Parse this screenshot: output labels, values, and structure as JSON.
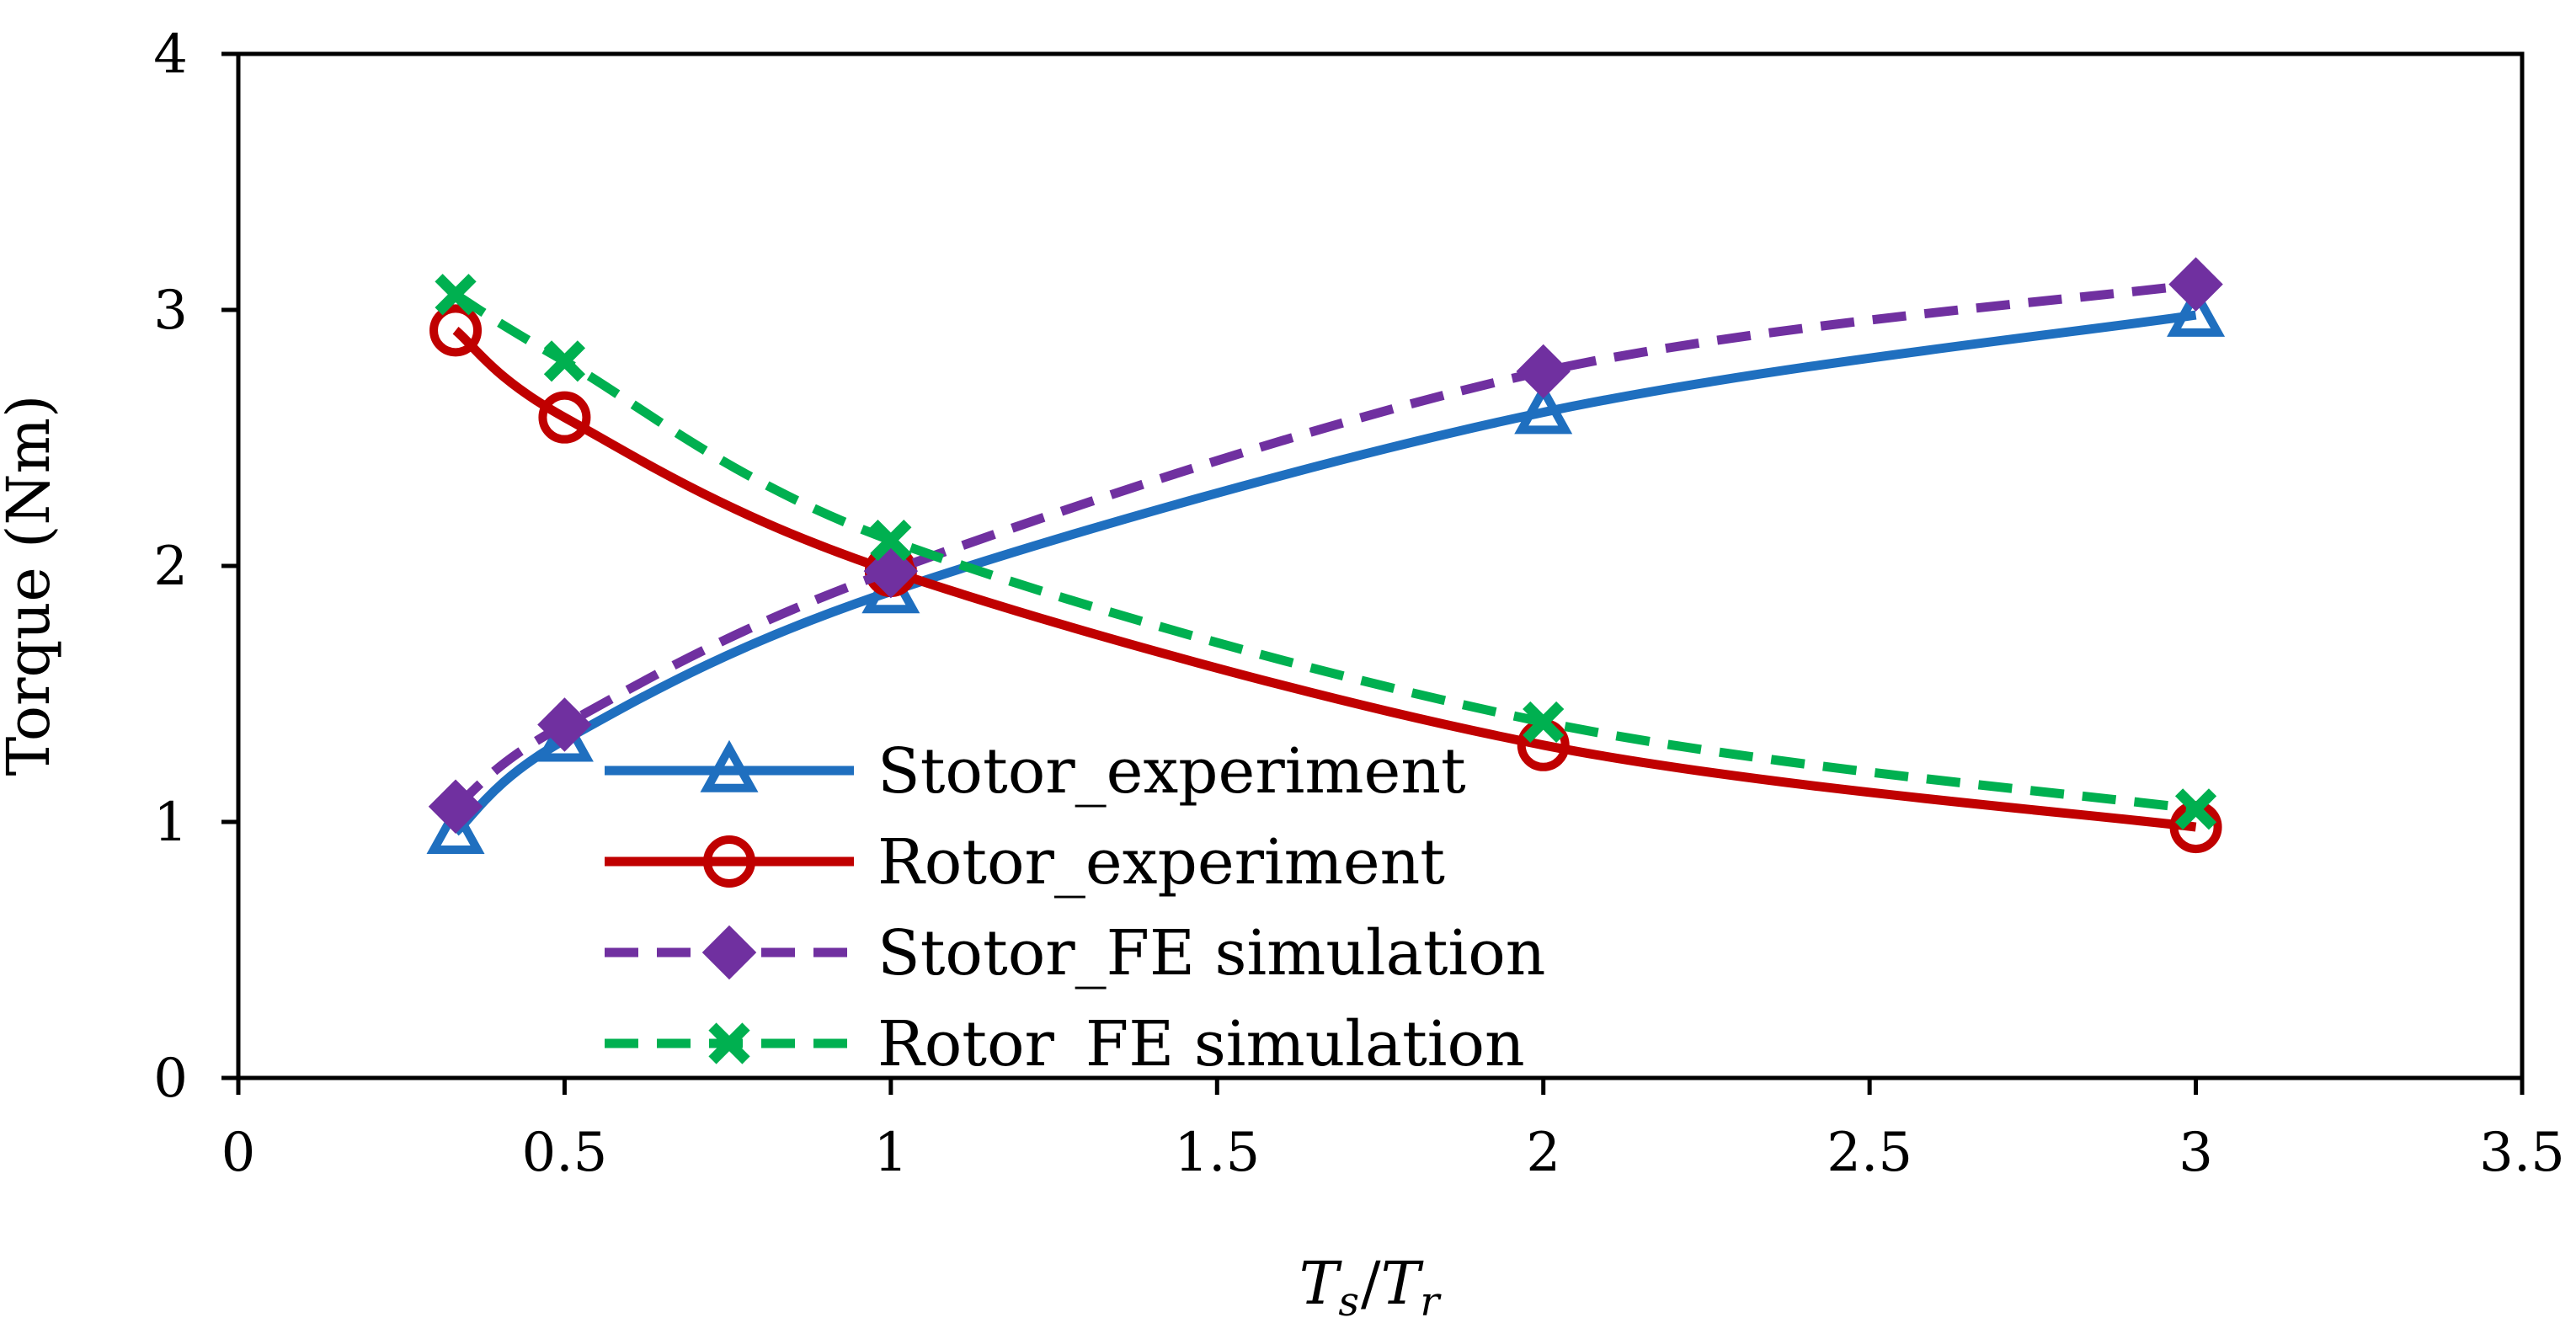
{
  "chart_data": {
    "type": "line",
    "title": "",
    "xlabel": "Ts/Tr",
    "xlabel_parts": {
      "base1": "T",
      "sub1": "s",
      "slash": "/",
      "base2": "T",
      "sub2": "r"
    },
    "ylabel": "Torque (Nm)",
    "xlim": [
      0,
      3.5
    ],
    "ylim": [
      0,
      4
    ],
    "xticks": [
      0,
      0.5,
      1,
      1.5,
      2,
      2.5,
      3,
      3.5
    ],
    "xtick_labels": [
      "0",
      "0.5",
      "1",
      "1.5",
      "2",
      "2.5",
      "3",
      "3.5"
    ],
    "yticks": [
      0,
      1,
      2,
      3,
      4
    ],
    "ytick_labels": [
      "0",
      "1",
      "2",
      "3",
      "4"
    ],
    "grid": false,
    "legend_position": "center-bottom",
    "series": [
      {
        "name": "Stotor_experiment",
        "color": "#1f6fbf",
        "marker": "triangle",
        "dashed": false,
        "x": [
          0.333,
          0.5,
          1,
          2,
          3
        ],
        "y": [
          0.96,
          1.32,
          1.9,
          2.6,
          2.98
        ]
      },
      {
        "name": "Rotor_experiment",
        "color": "#c00000",
        "marker": "circle",
        "dashed": false,
        "x": [
          0.333,
          0.5,
          1,
          2,
          3
        ],
        "y": [
          2.92,
          2.58,
          1.98,
          1.3,
          0.98
        ]
      },
      {
        "name": "Stotor_FE simulation",
        "color": "#7030a0",
        "marker": "diamond",
        "dashed": true,
        "x": [
          0.333,
          0.5,
          1,
          2,
          3
        ],
        "y": [
          1.06,
          1.38,
          1.98,
          2.76,
          3.1
        ]
      },
      {
        "name": "Rotor_FE simulation",
        "color": "#00b050",
        "marker": "x",
        "dashed": true,
        "x": [
          0.333,
          0.5,
          1,
          2,
          3
        ],
        "y": [
          3.06,
          2.8,
          2.1,
          1.39,
          1.05
        ]
      }
    ]
  }
}
